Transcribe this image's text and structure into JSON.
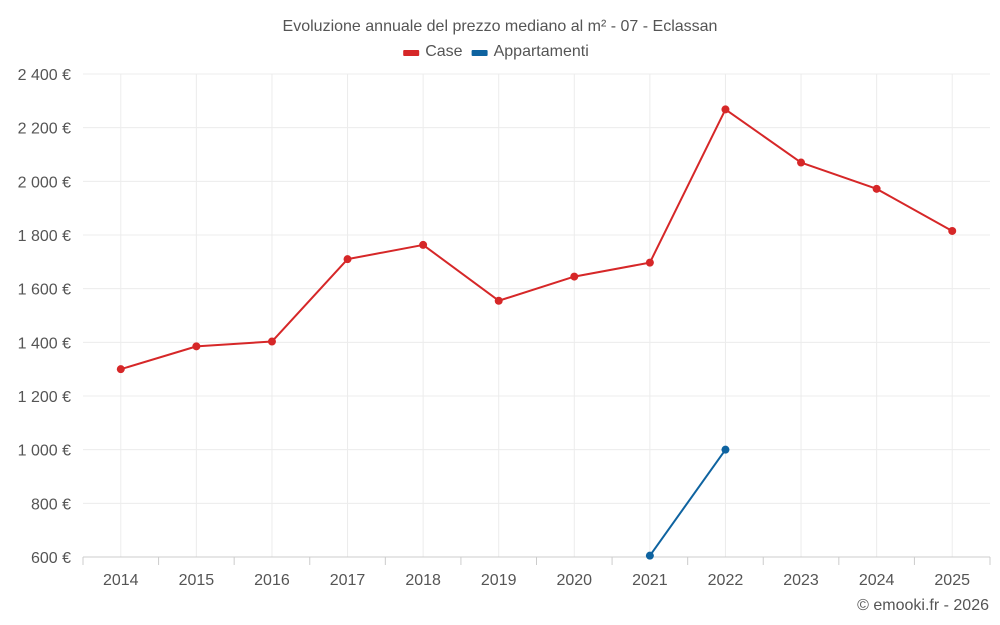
{
  "chart_data": {
    "type": "line",
    "title": "Evoluzione annuale del prezzo mediano al m² - 07 - Eclassan",
    "categories": [
      "2014",
      "2015",
      "2016",
      "2017",
      "2018",
      "2019",
      "2020",
      "2021",
      "2022",
      "2023",
      "2024",
      "2025"
    ],
    "series": [
      {
        "name": "Case",
        "color": "#d62728",
        "values": [
          1300,
          1385,
          1403,
          1710,
          1763,
          1555,
          1645,
          1697,
          2268,
          2070,
          1972,
          1815
        ]
      },
      {
        "name": "Appartamenti",
        "color": "#0e63a0",
        "values": [
          null,
          null,
          null,
          null,
          null,
          null,
          null,
          605,
          1000,
          null,
          null,
          null
        ]
      }
    ],
    "yticks": [
      600,
      800,
      1000,
      1200,
      1400,
      1600,
      1800,
      2000,
      2200,
      2400
    ],
    "ytick_labels": [
      "600 €",
      "800 €",
      "1 000 €",
      "1 200 €",
      "1 400 €",
      "1 600 €",
      "1 800 €",
      "2 000 €",
      "2 200 €",
      "2 400 €"
    ],
    "ylim": [
      600,
      2400
    ],
    "xlabel": "",
    "ylabel": "",
    "grid": true,
    "legend_position": "top-center"
  },
  "credit": "© emooki.fr - 2026"
}
